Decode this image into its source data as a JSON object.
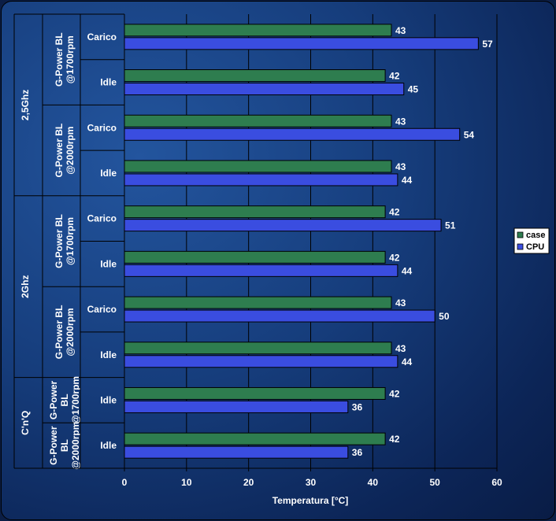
{
  "chart_data": {
    "type": "bar",
    "orientation": "horizontal",
    "xlabel": "Temperatura [°C]",
    "xlim": [
      0,
      60
    ],
    "xticks": [
      0,
      10,
      20,
      30,
      40,
      50,
      60
    ],
    "grid": true,
    "legend_position": "right",
    "series": [
      {
        "name": "case",
        "color": "#2e7d4f"
      },
      {
        "name": "CPU",
        "color": "#3a4de0"
      }
    ],
    "rows": [
      {
        "label": "Carico",
        "group": "G-Power BL @1700rpm",
        "supergroup": "2,5Ghz",
        "case": 43,
        "cpu": 57
      },
      {
        "label": "Idle",
        "group": "G-Power BL @1700rpm",
        "supergroup": "2,5Ghz",
        "case": 42,
        "cpu": 45
      },
      {
        "label": "Carico",
        "group": "G-Power BL @2000rpm",
        "supergroup": "2,5Ghz",
        "case": 43,
        "cpu": 54
      },
      {
        "label": "Idle",
        "group": "G-Power BL @2000rpm",
        "supergroup": "2,5Ghz",
        "case": 43,
        "cpu": 44
      },
      {
        "label": "Carico",
        "group": "G-Power BL @1700rpm",
        "supergroup": "2Ghz",
        "case": 42,
        "cpu": 51
      },
      {
        "label": "Idle",
        "group": "G-Power BL @1700rpm",
        "supergroup": "2Ghz",
        "case": 42,
        "cpu": 44
      },
      {
        "label": "Carico",
        "group": "G-Power BL @2000rpm",
        "supergroup": "2Ghz",
        "case": 43,
        "cpu": 50
      },
      {
        "label": "Idle",
        "group": "G-Power BL @2000rpm",
        "supergroup": "2Ghz",
        "case": 43,
        "cpu": 44
      },
      {
        "label": "Idle",
        "group": "G-Power BL @1700rpm",
        "supergroup": "C'n'Q",
        "case": 42,
        "cpu": 36
      },
      {
        "label": "Idle",
        "group": "G-Power BL @2000rpm",
        "supergroup": "C'n'Q",
        "case": 42,
        "cpu": 36
      }
    ],
    "groups": [
      {
        "lines": [
          "G-Power BL",
          "@1700rpm"
        ]
      },
      {
        "lines": [
          "G-Power BL",
          "@2000rpm"
        ]
      },
      {
        "lines": [
          "G-Power BL",
          "@1700rpm"
        ]
      },
      {
        "lines": [
          "G-Power BL",
          "@2000rpm"
        ]
      },
      {
        "lines": [
          "G-Power",
          "BL",
          "@1700rpm"
        ]
      },
      {
        "lines": [
          "G-Power",
          "BL",
          "@2000rpm"
        ]
      }
    ],
    "supergroups": [
      "2,5Ghz",
      "2Ghz",
      "C'n'Q"
    ]
  }
}
